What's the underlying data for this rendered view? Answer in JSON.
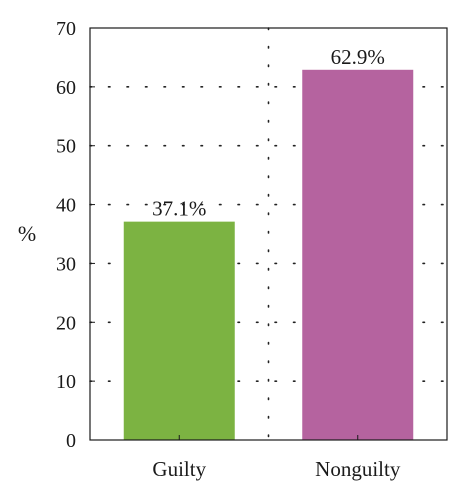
{
  "chart_data": {
    "type": "bar",
    "title": "",
    "xlabel": "",
    "ylabel": "%",
    "categories": [
      "Guilty",
      "Nonguilty"
    ],
    "values": [
      37.1,
      62.9
    ],
    "data_labels": [
      "37.1%",
      "62.9%"
    ],
    "ylim": [
      0,
      70
    ],
    "yticks": [
      0,
      10,
      20,
      30,
      40,
      50,
      60,
      70
    ],
    "grid": true,
    "grid_style": "dotted",
    "legend": "none",
    "colors": [
      "#7cb342",
      "#b5639f"
    ]
  }
}
